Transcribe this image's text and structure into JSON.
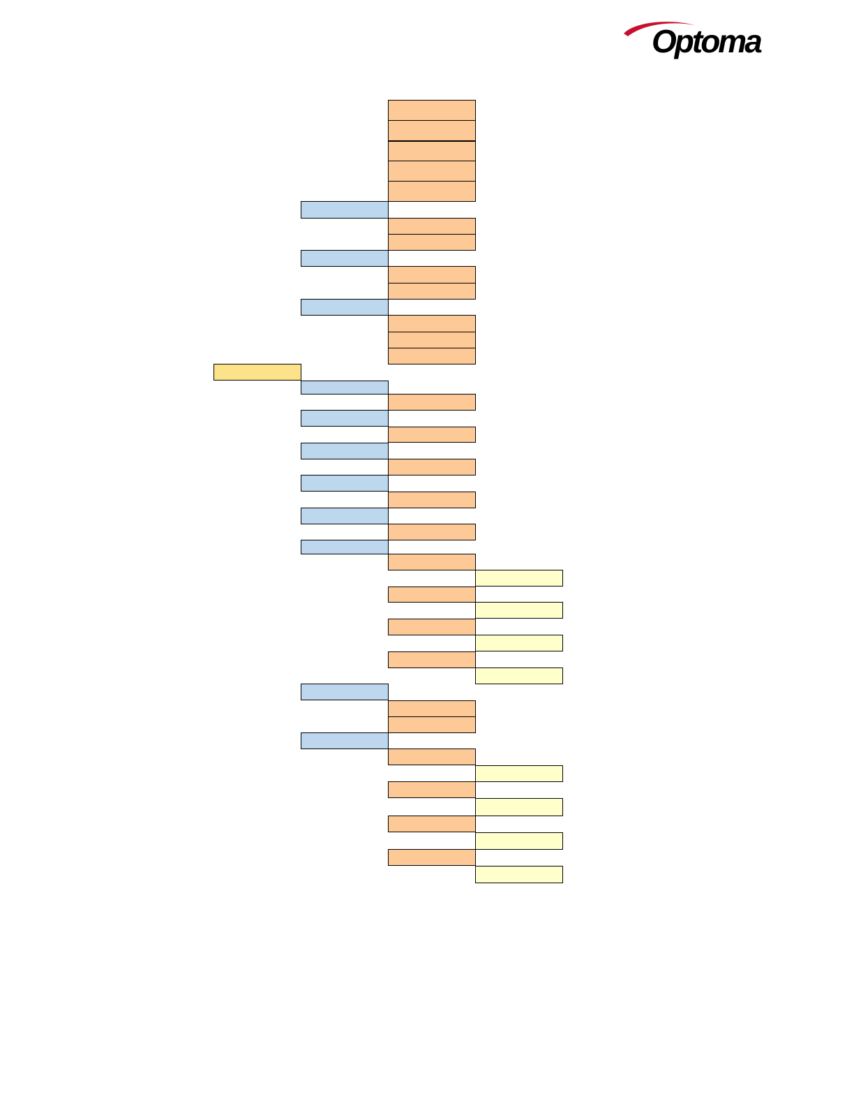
{
  "header": {
    "logo_text": "Optoma",
    "logo_icon": "optoma-swoosh-icon",
    "brand_colors": {
      "swoosh": "#c8102e",
      "text": "#000000"
    }
  },
  "menu_tree": {
    "level_colors": {
      "0": "#fce38a",
      "1": "#bdd7ee",
      "2": "#fdc997",
      "3": "#ffffcc"
    },
    "levels_shown": 4,
    "note_text": ""
  }
}
